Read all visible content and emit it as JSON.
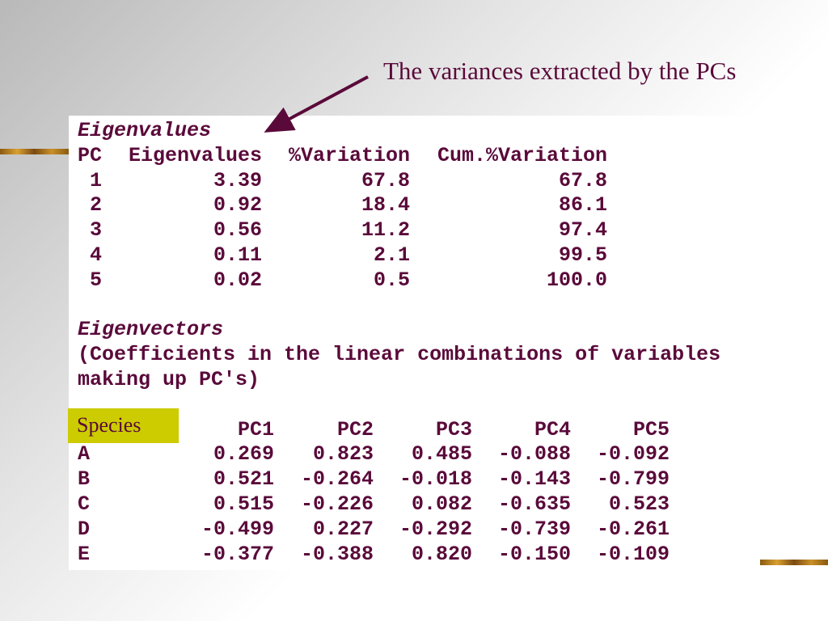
{
  "annotation": "The variances extracted by the PCs",
  "eigenvalues": {
    "title": "Eigenvalues",
    "header": [
      "PC",
      "Eigenvalues",
      "%Variation",
      "Cum.%Variation"
    ],
    "rows": [
      [
        "1",
        "3.39",
        "67.8",
        "67.8"
      ],
      [
        "2",
        "0.92",
        "18.4",
        "86.1"
      ],
      [
        "3",
        "0.56",
        "11.2",
        "97.4"
      ],
      [
        "4",
        "0.11",
        "2.1",
        "99.5"
      ],
      [
        "5",
        "0.02",
        "0.5",
        "100.0"
      ]
    ]
  },
  "eigenvectors": {
    "title": "Eigenvectors",
    "note_lines": [
      "(Coefficients in the linear combinations of variables",
      "making up PC's)"
    ],
    "species_label": "Species",
    "header": [
      "PC1",
      "PC2",
      "PC3",
      "PC4",
      "PC5"
    ],
    "rows": [
      [
        "A",
        "0.269",
        "0.823",
        "0.485",
        "-0.088",
        "-0.092"
      ],
      [
        "B",
        "0.521",
        "-0.264",
        "-0.018",
        "-0.143",
        "-0.799"
      ],
      [
        "C",
        "0.515",
        "-0.226",
        "0.082",
        "-0.635",
        "0.523"
      ],
      [
        "D",
        "-0.499",
        "0.227",
        "-0.292",
        "-0.739",
        "-0.261"
      ],
      [
        "E",
        "-0.377",
        "-0.388",
        "0.820",
        "-0.150",
        "-0.109"
      ]
    ]
  }
}
